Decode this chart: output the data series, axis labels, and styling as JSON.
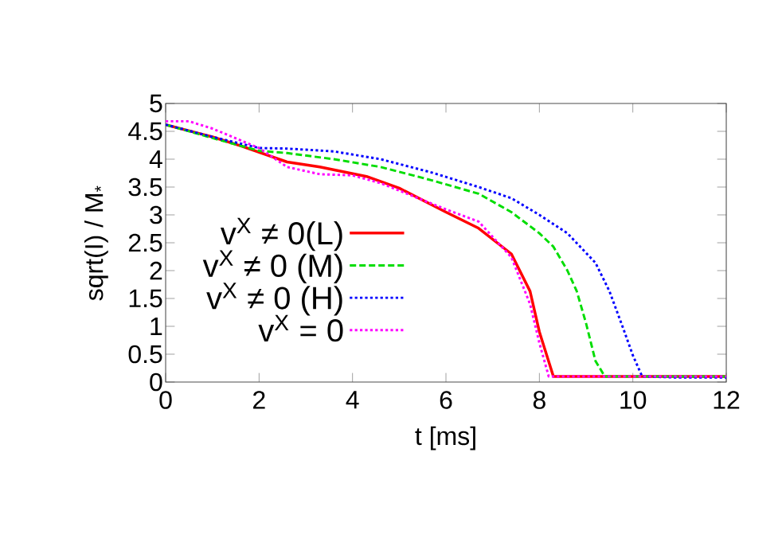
{
  "chart_data": {
    "type": "line",
    "xlabel": "t [ms]",
    "ylabel": "sqrt(I) / M$_{*}$",
    "xlim": [
      0,
      12
    ],
    "ylim": [
      0,
      5
    ],
    "xticks": [
      0,
      2,
      4,
      6,
      8,
      10,
      12
    ],
    "yticks": [
      0,
      0.5,
      1,
      1.5,
      2,
      2.5,
      3,
      3.5,
      4,
      4.5,
      5
    ],
    "grid": false,
    "legend": "left",
    "marker": "none",
    "series": [
      {
        "name": "v$^{X}$ ≠ 0(L)",
        "color": "#ff0000",
        "line_style": "solid",
        "x": [
          0,
          1,
          1.6,
          2.6,
          3.3,
          4.3,
          5,
          6,
          6.7,
          7.4,
          7.8,
          8,
          8.3,
          9,
          10,
          11,
          12
        ],
        "values": [
          4.62,
          4.4,
          4.24,
          3.95,
          3.86,
          3.69,
          3.48,
          3.05,
          2.76,
          2.3,
          1.63,
          0.9,
          0.1,
          0.1,
          0.1,
          0.1,
          0.1
        ]
      },
      {
        "name": "v$^{X}$ ≠ 0 (M)",
        "color": "#00dd00",
        "line_style": "dashed",
        "x": [
          0,
          1,
          2,
          2.6,
          3.6,
          4.6,
          5.7,
          6.7,
          7.4,
          8,
          8.3,
          8.6,
          8.8,
          9,
          9.2,
          9.4,
          10,
          11,
          12
        ],
        "values": [
          4.62,
          4.38,
          4.15,
          4.11,
          4.0,
          3.86,
          3.62,
          3.38,
          3.05,
          2.67,
          2.43,
          2.0,
          1.63,
          1.05,
          0.38,
          0.1,
          0.1,
          0.1,
          0.1
        ]
      },
      {
        "name": "v$^{X}$ ≠ 0 (H)",
        "color": "#0000ff",
        "line_style": "dotted",
        "x": [
          0,
          1,
          2,
          2.6,
          3.6,
          4.6,
          5.7,
          6.7,
          7.4,
          8,
          8.6,
          9.2,
          9.5,
          9.8,
          10,
          10.2,
          11,
          12
        ],
        "values": [
          4.62,
          4.4,
          4.2,
          4.19,
          4.14,
          4.0,
          3.76,
          3.5,
          3.3,
          3.0,
          2.67,
          2.14,
          1.63,
          0.95,
          0.48,
          0.1,
          0.08,
          0.08
        ]
      },
      {
        "name": "v$^{X}$ = 0",
        "color": "#ff00ff",
        "line_style": "dotted",
        "x": [
          0,
          0.5,
          1,
          2,
          2.6,
          3.3,
          4,
          4.6,
          6,
          6.7,
          7.4,
          7.8,
          8,
          8.2,
          9,
          10,
          11,
          12
        ],
        "values": [
          4.68,
          4.68,
          4.55,
          4.2,
          3.86,
          3.73,
          3.71,
          3.57,
          3.1,
          2.88,
          2.24,
          1.4,
          0.7,
          0.1,
          0.1,
          0.1,
          0.1,
          0.1
        ]
      }
    ]
  }
}
